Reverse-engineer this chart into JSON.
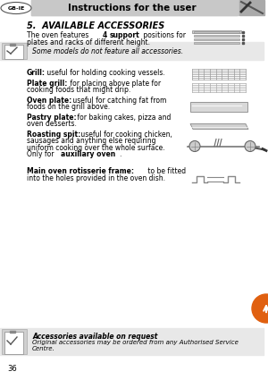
{
  "page_bg": "#ffffff",
  "header_bg": "#c8c8c8",
  "header_text": "Instructions for the user",
  "header_text_color": "#000000",
  "gb_ie_label": "GB-IE",
  "section_title": "5.  AVAILABLE ACCESSORIES",
  "note_bg": "#e8e8e8",
  "note_text": "Some models do not feature all accessories.",
  "items": [
    {
      "bold": "Grill:",
      "rest": " useful for holding cooking vessels.",
      "lines": 1
    },
    {
      "bold": "Plate grill:",
      "rest": "  for placing above plate for\ncooking foods that might drip.",
      "lines": 2
    },
    {
      "bold": "Oven plate:",
      "rest": " useful for catching fat from\nfoods on the grill above.",
      "lines": 2
    },
    {
      "bold": "Pastry plate:",
      "rest": " for baking cakes, pizza and\noven desserts.",
      "lines": 2
    },
    {
      "bold": "Roasting spit:",
      "rest": " useful for cooking chicken,\nsausages and anything else requiring\nuniform cooking over the whole surface.\nOnly for ",
      "bold2": "auxiliary oven",
      "rest2": ".",
      "lines": 4
    },
    {
      "bold": "Main oven rotisserie frame:",
      "rest": " to be fitted\ninto the holes provided in the oven dish.",
      "lines": 2
    }
  ],
  "footer_bg": "#e8e8e8",
  "footer_bold": "Accessories available on request",
  "footer_italic": "Original accessories may be ordered from any Authorised Service\nCentre.",
  "page_number": "36",
  "orange_circle_color": "#e06010"
}
